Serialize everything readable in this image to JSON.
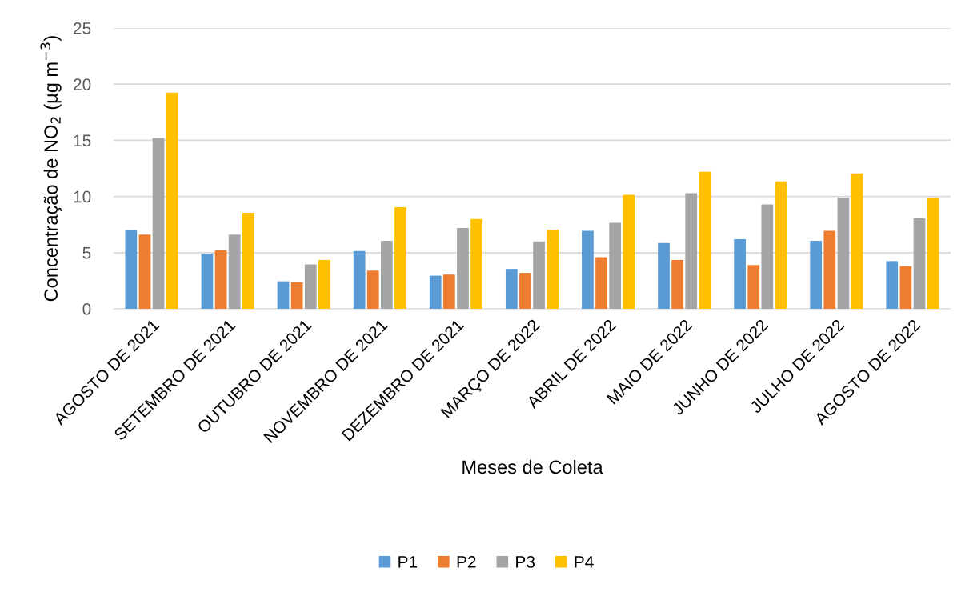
{
  "chart_data": {
    "type": "bar",
    "xlabel": "Meses de Coleta",
    "ylabel": "Concentração de NO$_{2}$ (µg m$^{−3}$)",
    "categories": [
      "AGOSTO DE 2021",
      "SETEMBRO DE 2021",
      "OUTUBRO DE 2021",
      "NOVEMBRO DE 2021",
      "DEZEMBRO DE 2021",
      "MARÇO DE 2022",
      "ABRIL DE 2022",
      "MAIO DE 2022",
      "JUNHO DE 2022",
      "JULHO DE 2022",
      "AGOSTO DE 2022"
    ],
    "series": [
      {
        "name": "P1",
        "color": "#5b9bd5",
        "values": [
          7.0,
          4.9,
          2.45,
          5.15,
          2.95,
          3.55,
          6.95,
          5.85,
          6.2,
          6.05,
          4.25
        ]
      },
      {
        "name": "P2",
        "color": "#ed7d31",
        "values": [
          6.6,
          5.2,
          2.35,
          3.4,
          3.05,
          3.2,
          4.6,
          4.35,
          3.9,
          6.95,
          3.8
        ]
      },
      {
        "name": "P3",
        "color": "#a5a5a5",
        "values": [
          15.2,
          6.6,
          3.95,
          6.05,
          7.2,
          6.0,
          7.65,
          10.3,
          9.3,
          9.9,
          8.05
        ]
      },
      {
        "name": "P4",
        "color": "#ffc000",
        "values": [
          19.25,
          8.55,
          4.35,
          9.05,
          8.0,
          7.05,
          10.15,
          12.2,
          11.35,
          12.05,
          9.85
        ]
      }
    ],
    "ylim": [
      0,
      25
    ],
    "yticks": [
      0,
      5,
      10,
      15,
      20,
      25
    ],
    "grid": "y",
    "legend": "bottom"
  }
}
